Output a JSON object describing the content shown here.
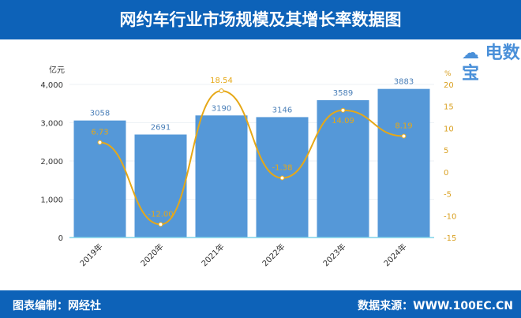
{
  "header": {
    "title": "网约车行业市场规模及其增长率数据图"
  },
  "footer": {
    "left": "图表编制：网经社",
    "right": "数据来源：WWW.100EC.CN"
  },
  "logo": {
    "text": "电数宝"
  },
  "chart_data": {
    "type": "bar+line",
    "title": "网约车行业市场规模及其增长率数据图",
    "categories": [
      "2019年",
      "2020年",
      "2021年",
      "2022年",
      "2023年",
      "2024年"
    ],
    "series": [
      {
        "type": "bar",
        "axis": "left",
        "values": [
          3058,
          2691,
          3190,
          3146,
          3589,
          3883
        ],
        "color": "#5598d8"
      },
      {
        "type": "line",
        "axis": "right",
        "values": [
          6.73,
          -12.0,
          18.54,
          -1.38,
          14.09,
          8.19
        ],
        "color": "#e6a817"
      }
    ],
    "ylabel": "亿元",
    "y2label": "%",
    "ylim": [
      0,
      4000
    ],
    "yticks": [
      0,
      1000,
      2000,
      3000,
      4000
    ],
    "yticklabels": [
      "0",
      "1,000",
      "2,000",
      "3,000",
      "4,000"
    ],
    "y2lim": [
      -15,
      20
    ],
    "y2ticks": [
      -15,
      -10,
      -5,
      0,
      5,
      10,
      15,
      20
    ],
    "grid": true
  }
}
